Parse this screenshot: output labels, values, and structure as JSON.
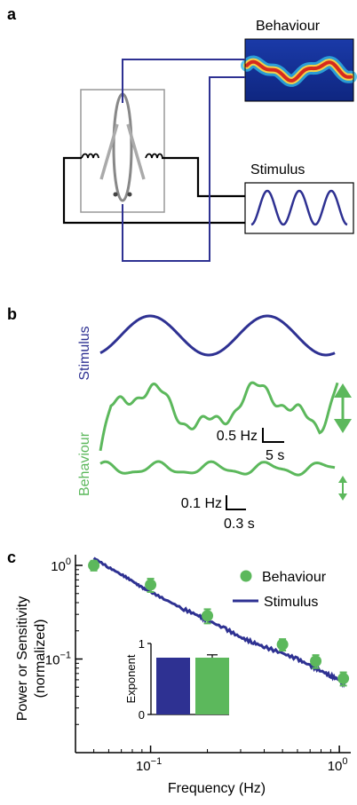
{
  "panel_a": {
    "letter": "a",
    "behaviour_label": "Behaviour",
    "stimulus_label": "Stimulus",
    "colors": {
      "stimulus": "#2e3192",
      "behaviour": "#5cb85c",
      "wire": "#000000",
      "feedback": "#2e3192"
    }
  },
  "panel_b": {
    "letter": "b",
    "stimulus_label": "Stimulus",
    "behaviour_label": "Behaviour",
    "scale1": {
      "y": "0.5 Hz",
      "x": "5 s"
    },
    "scale2": {
      "y": "0.1 Hz",
      "x": "0.3 s"
    }
  },
  "chart_data": {
    "type": "scatter",
    "xlabel": "Frequency (Hz)",
    "ylabel_line1": "Power or Sensitivity",
    "ylabel_line2": "(normalized)",
    "x_scale": "log",
    "y_scale": "log",
    "xlim": [
      0.04,
      1.15
    ],
    "ylim": [
      0.01,
      1.3
    ],
    "xticks": [
      {
        "value": 0.1,
        "base": "10",
        "exp": "−1"
      },
      {
        "value": 1,
        "base": "10",
        "exp": "0"
      }
    ],
    "yticks": [
      {
        "value": 0.1,
        "base": "10",
        "exp": "−1"
      },
      {
        "value": 1,
        "base": "10",
        "exp": "0"
      }
    ],
    "legend_position": "top-right",
    "series": [
      {
        "name": "Behaviour",
        "type": "scatter",
        "color": "#5cb85c",
        "points": [
          {
            "x": 0.05,
            "y": 1.0,
            "err": 0.12
          },
          {
            "x": 0.1,
            "y": 0.62,
            "err": 0.1
          },
          {
            "x": 0.2,
            "y": 0.29,
            "err": 0.05
          },
          {
            "x": 0.5,
            "y": 0.143,
            "err": 0.02
          },
          {
            "x": 0.75,
            "y": 0.095,
            "err": 0.015
          },
          {
            "x": 1.05,
            "y": 0.062,
            "err": 0.01
          }
        ]
      },
      {
        "name": "Stimulus",
        "type": "line",
        "color": "#2e3192",
        "points": [
          {
            "x": 0.05,
            "y": 1.2
          },
          {
            "x": 0.06,
            "y": 0.95
          },
          {
            "x": 0.07,
            "y": 0.8
          },
          {
            "x": 0.08,
            "y": 0.68
          },
          {
            "x": 0.09,
            "y": 0.58
          },
          {
            "x": 0.1,
            "y": 0.52
          },
          {
            "x": 0.12,
            "y": 0.43
          },
          {
            "x": 0.15,
            "y": 0.34
          },
          {
            "x": 0.18,
            "y": 0.29
          },
          {
            "x": 0.2,
            "y": 0.26
          },
          {
            "x": 0.25,
            "y": 0.21
          },
          {
            "x": 0.3,
            "y": 0.17
          },
          {
            "x": 0.35,
            "y": 0.15
          },
          {
            "x": 0.4,
            "y": 0.135
          },
          {
            "x": 0.5,
            "y": 0.115
          },
          {
            "x": 0.6,
            "y": 0.1
          },
          {
            "x": 0.7,
            "y": 0.085
          },
          {
            "x": 0.8,
            "y": 0.075
          },
          {
            "x": 0.9,
            "y": 0.066
          },
          {
            "x": 1.0,
            "y": 0.06
          },
          {
            "x": 1.08,
            "y": 0.055
          }
        ]
      }
    ],
    "inset": {
      "type": "bar",
      "ylabel": "Exponent",
      "ylim": [
        0,
        1
      ],
      "yticks": [
        "0",
        "1"
      ],
      "bars": [
        {
          "name": "Stimulus",
          "value": 0.8,
          "color": "#2e3192"
        },
        {
          "name": "Behaviour",
          "value": 0.8,
          "err": 0.04,
          "color": "#5cb85c"
        }
      ]
    }
  }
}
